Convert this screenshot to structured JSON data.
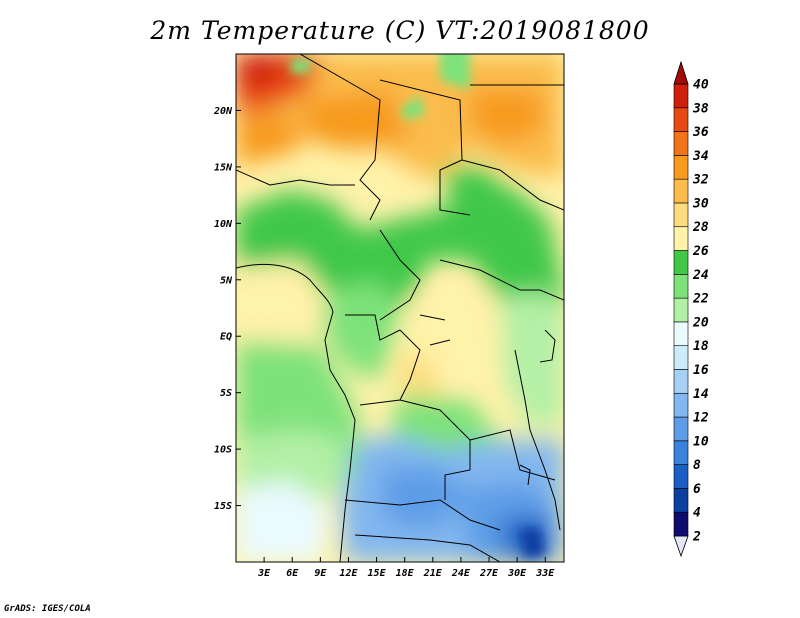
{
  "title": "2m Temperature (C) VT:2019081800",
  "credit": "GrADS: IGES/COLA",
  "map": {
    "lon_range": [
      0,
      35
    ],
    "lat_range": [
      -20,
      25
    ],
    "lat_ticks": [
      {
        "value": 20,
        "label": "20N"
      },
      {
        "value": 15,
        "label": "15N"
      },
      {
        "value": 10,
        "label": "10N"
      },
      {
        "value": 5,
        "label": "5N"
      },
      {
        "value": 0,
        "label": "EQ"
      },
      {
        "value": -5,
        "label": "5S"
      },
      {
        "value": -10,
        "label": "10S"
      },
      {
        "value": -15,
        "label": "15S"
      }
    ],
    "lon_ticks": [
      {
        "value": 3,
        "label": "3E"
      },
      {
        "value": 6,
        "label": "6E"
      },
      {
        "value": 9,
        "label": "9E"
      },
      {
        "value": 12,
        "label": "12E"
      },
      {
        "value": 15,
        "label": "15E"
      },
      {
        "value": 18,
        "label": "18E"
      },
      {
        "value": 21,
        "label": "21E"
      },
      {
        "value": 24,
        "label": "24E"
      },
      {
        "value": 27,
        "label": "27E"
      },
      {
        "value": 30,
        "label": "30E"
      },
      {
        "value": 33,
        "label": "33E"
      }
    ]
  },
  "colorbar": {
    "levels": [
      "2",
      "4",
      "6",
      "8",
      "10",
      "12",
      "14",
      "16",
      "18",
      "20",
      "22",
      "24",
      "26",
      "28",
      "30",
      "32",
      "34",
      "36",
      "38",
      "40"
    ],
    "colors": [
      "#e6e6fa",
      "#0e0c6e",
      "#0b3fa0",
      "#1b5fc4",
      "#3a82db",
      "#5d9de7",
      "#82b7ef",
      "#a8d0f5",
      "#ccebfb",
      "#eafaff",
      "#b3f0a6",
      "#7ee27a",
      "#41c849",
      "#fff2a9",
      "#fddc7e",
      "#fbbc4b",
      "#f79a1e",
      "#f2731a",
      "#e94a12",
      "#d01f0b",
      "#a20c04"
    ]
  }
}
